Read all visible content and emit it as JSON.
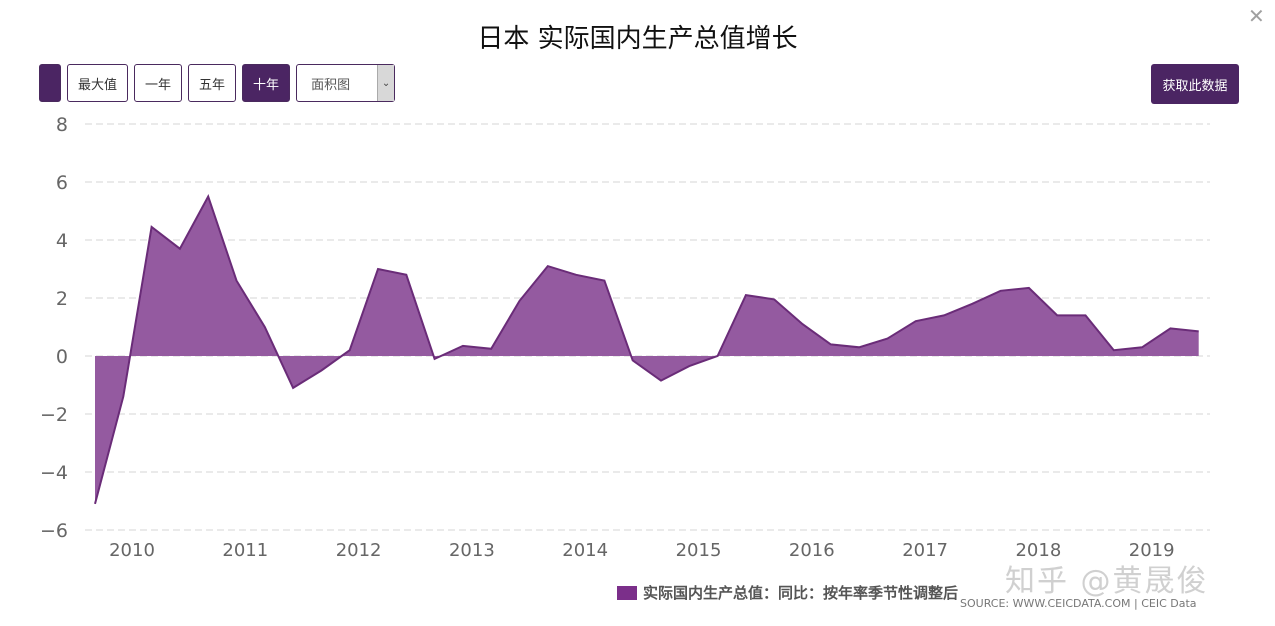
{
  "header": {
    "title": "日本 实际国内生产总值增长",
    "close_icon": "close-icon"
  },
  "toolbar": {
    "buttons": [
      {
        "label": "",
        "active": true
      },
      {
        "label": "最大值",
        "active": false
      },
      {
        "label": "一年",
        "active": false
      },
      {
        "label": "五年",
        "active": false
      },
      {
        "label": "十年",
        "active": true
      }
    ],
    "chart_type_select": {
      "value": "面积图"
    },
    "get_data_label": "获取此数据"
  },
  "legend": {
    "label": "实际国内生产总值：同比：按年率季节性调整后",
    "color": "#7b2f8a"
  },
  "source": "SOURCE: WWW.CEICDATA.COM | CEIC Data",
  "watermark": "知乎 @黄晟俊",
  "colors": {
    "accent": "#4b2563",
    "area_fill": "#945aa0",
    "area_line": "#6a2c78"
  },
  "chart_data": {
    "type": "area",
    "title": "日本 实际国内生产总值增长",
    "xlabel": "",
    "ylabel": "",
    "ylim": [
      -6,
      8
    ],
    "yticks": [
      8,
      6,
      4,
      2,
      0,
      -2,
      -4,
      -6
    ],
    "x_tick_labels": [
      "2010",
      "2011",
      "2012",
      "2013",
      "2014",
      "2015",
      "2016",
      "2017",
      "2018",
      "2019"
    ],
    "grid": true,
    "legend_position": "bottom",
    "series": [
      {
        "name": "实际国内生产总值：同比：按年率季节性调整后",
        "x": [
          "2009Q3",
          "2009Q4",
          "2010Q1",
          "2010Q2",
          "2010Q3",
          "2010Q4",
          "2011Q1",
          "2011Q2",
          "2011Q3",
          "2011Q4",
          "2012Q1",
          "2012Q2",
          "2012Q3",
          "2012Q4",
          "2013Q1",
          "2013Q2",
          "2013Q3",
          "2013Q4",
          "2014Q1",
          "2014Q2",
          "2014Q3",
          "2014Q4",
          "2015Q1",
          "2015Q2",
          "2015Q3",
          "2015Q4",
          "2016Q1",
          "2016Q2",
          "2016Q3",
          "2016Q4",
          "2017Q1",
          "2017Q2",
          "2017Q3",
          "2017Q4",
          "2018Q1",
          "2018Q2",
          "2018Q3",
          "2018Q4",
          "2019Q1",
          "2019Q2"
        ],
        "values": [
          -5.1,
          -1.4,
          4.45,
          3.7,
          5.5,
          2.6,
          1.0,
          -1.1,
          -0.5,
          0.2,
          3.0,
          2.8,
          -0.1,
          0.35,
          0.25,
          1.9,
          3.1,
          2.8,
          2.6,
          -0.15,
          -0.85,
          -0.35,
          0.0,
          2.1,
          1.95,
          1.1,
          0.4,
          0.3,
          0.6,
          1.2,
          1.4,
          1.8,
          2.25,
          2.35,
          1.4,
          1.4,
          0.2,
          0.3,
          0.95,
          0.85
        ]
      }
    ]
  }
}
